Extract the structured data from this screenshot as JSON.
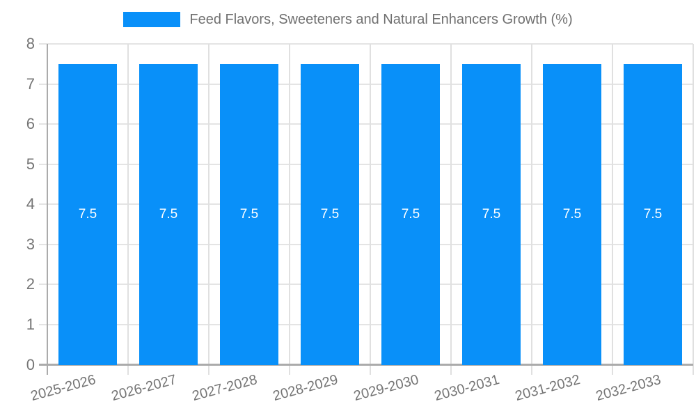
{
  "legend": {
    "swatch_color": "#0990F9"
  },
  "chart_data": {
    "type": "bar",
    "title": "Feed Flavors, Sweeteners and Natural Enhancers Growth (%)",
    "categories": [
      "2025-2026",
      "2026-2027",
      "2027-2028",
      "2028-2029",
      "2029-2030",
      "2030-2031",
      "2031-2032",
      "2032-2033"
    ],
    "values": [
      7.5,
      7.5,
      7.5,
      7.5,
      7.5,
      7.5,
      7.5,
      7.5
    ],
    "bar_labels": [
      "7.5",
      "7.5",
      "7.5",
      "7.5",
      "7.5",
      "7.5",
      "7.5",
      "7.5"
    ],
    "ylabel": "",
    "xlabel": "",
    "ylim": [
      0,
      8
    ],
    "yticks": [
      0,
      1,
      2,
      3,
      4,
      5,
      6,
      7,
      8
    ],
    "grid": true,
    "legend_position": "top",
    "x_label_rotation_deg": -15,
    "colors": {
      "bar": "#0990F9",
      "grid": "#E4E4E4",
      "grid_vertical": "#E0E0E0",
      "axis": "#ABABAB",
      "tick_label": "#757575",
      "title": "#707070",
      "bar_label": "#FFFFFF"
    }
  }
}
